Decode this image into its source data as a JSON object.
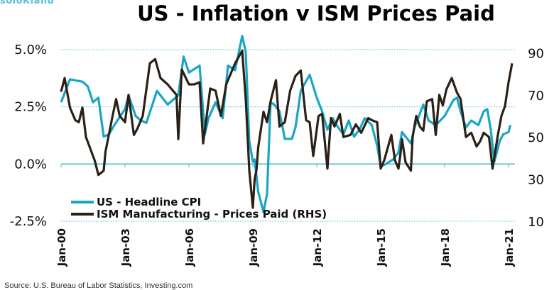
{
  "logo": "soloKland",
  "colors": {
    "cpi": "#1ba5c3",
    "ism": "#2a2016",
    "grid": "#4fb9d3"
  },
  "chart_data": {
    "type": "line",
    "title": "US - Inflation v ISM Prices Paid",
    "source": "Source: U.S. Bureau of Labor Statistics, Investing.com",
    "grid": true,
    "legend_placement": "bottom-left",
    "left_axis": {
      "ylim": [
        -2.5,
        5.0
      ],
      "ticks": [
        "-2.5%",
        "0.0%",
        "2.5%",
        "5.0%"
      ],
      "tick_values": [
        -2.5,
        0,
        2.5,
        5.0
      ]
    },
    "right_axis": {
      "ylim": [
        10,
        91.5
      ],
      "ticks": [
        "10",
        "30",
        "50",
        "70",
        "90"
      ],
      "tick_values": [
        10,
        30,
        50,
        70,
        90
      ]
    },
    "x_ticks": [
      "Jan-00",
      "Jan-03",
      "Jan-06",
      "Jan-09",
      "Jan-12",
      "Jan-15",
      "Jan-18",
      "Jan-21"
    ],
    "x_tick_values": [
      "2000-01",
      "2003-01",
      "2006-01",
      "2009-01",
      "2012-01",
      "2015-01",
      "2018-01",
      "2021-01"
    ],
    "series": [
      {
        "name": "US - Headline CPI",
        "axis": "left",
        "points": [
          [
            "2000-01",
            2.7
          ],
          [
            "2000-06",
            3.7
          ],
          [
            "2001-01",
            3.6
          ],
          [
            "2001-04",
            3.4
          ],
          [
            "2001-07",
            2.7
          ],
          [
            "2001-10",
            2.9
          ],
          [
            "2002-01",
            1.2
          ],
          [
            "2002-04",
            1.3
          ],
          [
            "2002-07",
            1.7
          ],
          [
            "2003-01",
            2.4
          ],
          [
            "2003-03",
            3.0
          ],
          [
            "2003-07",
            2.1
          ],
          [
            "2003-10",
            1.9
          ],
          [
            "2004-01",
            1.8
          ],
          [
            "2004-07",
            3.2
          ],
          [
            "2005-01",
            2.6
          ],
          [
            "2005-07",
            3.0
          ],
          [
            "2005-10",
            4.7
          ],
          [
            "2006-01",
            4.0
          ],
          [
            "2006-07",
            4.3
          ],
          [
            "2006-10",
            1.3
          ],
          [
            "2006-12",
            2.0
          ],
          [
            "2007-04",
            2.7
          ],
          [
            "2007-08",
            2.0
          ],
          [
            "2007-11",
            4.3
          ],
          [
            "2008-03",
            4.1
          ],
          [
            "2008-07",
            5.6
          ],
          [
            "2008-09",
            4.9
          ],
          [
            "2008-11",
            1.0
          ],
          [
            "2009-01",
            0.1
          ],
          [
            "2009-02",
            0.2
          ],
          [
            "2009-04",
            -1.2
          ],
          [
            "2009-07",
            -2.1
          ],
          [
            "2009-09",
            -1.3
          ],
          [
            "2009-11",
            2.7
          ],
          [
            "2010-01",
            2.6
          ],
          [
            "2010-04",
            2.3
          ],
          [
            "2010-07",
            1.1
          ],
          [
            "2010-11",
            1.1
          ],
          [
            "2011-01",
            1.6
          ],
          [
            "2011-04",
            3.2
          ],
          [
            "2011-09",
            3.9
          ],
          [
            "2012-01",
            2.9
          ],
          [
            "2012-04",
            2.3
          ],
          [
            "2012-07",
            1.5
          ],
          [
            "2012-10",
            2.0
          ],
          [
            "2013-01",
            1.6
          ],
          [
            "2013-04",
            1.3
          ],
          [
            "2013-07",
            1.9
          ],
          [
            "2013-10",
            1.2
          ],
          [
            "2014-01",
            1.5
          ],
          [
            "2014-04",
            2.0
          ],
          [
            "2014-08",
            1.7
          ],
          [
            "2014-11",
            0.8
          ],
          [
            "2015-01",
            -0.1
          ],
          [
            "2015-04",
            0.0
          ],
          [
            "2015-08",
            0.2
          ],
          [
            "2015-11",
            0.5
          ],
          [
            "2016-01",
            1.4
          ],
          [
            "2016-04",
            1.1
          ],
          [
            "2016-06",
            0.9
          ],
          [
            "2016-08",
            1.6
          ],
          [
            "2017-01",
            2.6
          ],
          [
            "2017-04",
            1.9
          ],
          [
            "2017-08",
            1.7
          ],
          [
            "2018-01",
            2.1
          ],
          [
            "2018-06",
            2.8
          ],
          [
            "2018-08",
            2.9
          ],
          [
            "2018-10",
            2.3
          ],
          [
            "2019-01",
            1.6
          ],
          [
            "2019-04",
            1.9
          ],
          [
            "2019-08",
            1.7
          ],
          [
            "2019-11",
            2.3
          ],
          [
            "2020-01",
            2.4
          ],
          [
            "2020-03",
            1.5
          ],
          [
            "2020-05",
            0.1
          ],
          [
            "2020-08",
            1.0
          ],
          [
            "2020-10",
            1.3
          ],
          [
            "2021-01",
            1.4
          ],
          [
            "2021-02",
            1.7
          ]
        ]
      },
      {
        "name": "ISM Manufacturing - Prices Paid (RHS)",
        "axis": "right",
        "points": [
          [
            "2000-01",
            71.5
          ],
          [
            "2000-03",
            78
          ],
          [
            "2000-06",
            64
          ],
          [
            "2000-09",
            58
          ],
          [
            "2000-11",
            57
          ],
          [
            "2001-01",
            64
          ],
          [
            "2001-03",
            50
          ],
          [
            "2001-08",
            38.7
          ],
          [
            "2001-10",
            32
          ],
          [
            "2002-01",
            34
          ],
          [
            "2002-02",
            43
          ],
          [
            "2002-06",
            60
          ],
          [
            "2002-08",
            68
          ],
          [
            "2002-10",
            60
          ],
          [
            "2003-01",
            57
          ],
          [
            "2003-03",
            70
          ],
          [
            "2003-06",
            51
          ],
          [
            "2003-08",
            54
          ],
          [
            "2003-11",
            60
          ],
          [
            "2004-03",
            85
          ],
          [
            "2004-06",
            87
          ],
          [
            "2004-09",
            78
          ],
          [
            "2005-01",
            75
          ],
          [
            "2005-06",
            70
          ],
          [
            "2005-07",
            49
          ],
          [
            "2005-09",
            82
          ],
          [
            "2006-01",
            75
          ],
          [
            "2006-04",
            75
          ],
          [
            "2006-07",
            76
          ],
          [
            "2006-09",
            47
          ],
          [
            "2007-01",
            73
          ],
          [
            "2007-04",
            72
          ],
          [
            "2007-07",
            60
          ],
          [
            "2007-10",
            75
          ],
          [
            "2008-03",
            85
          ],
          [
            "2008-07",
            91
          ],
          [
            "2008-09",
            68
          ],
          [
            "2008-11",
            34
          ],
          [
            "2009-01",
            16.4
          ],
          [
            "2009-02",
            30
          ],
          [
            "2009-03",
            34
          ],
          [
            "2009-04",
            45
          ],
          [
            "2009-07",
            62
          ],
          [
            "2009-09",
            57
          ],
          [
            "2009-11",
            67
          ],
          [
            "2010-02",
            77
          ],
          [
            "2010-04",
            55
          ],
          [
            "2010-07",
            57
          ],
          [
            "2010-10",
            72
          ],
          [
            "2011-01",
            79
          ],
          [
            "2011-04",
            81.6
          ],
          [
            "2011-07",
            58
          ],
          [
            "2011-09",
            57
          ],
          [
            "2011-11",
            41
          ],
          [
            "2012-02",
            60
          ],
          [
            "2012-04",
            61
          ],
          [
            "2012-07",
            35
          ],
          [
            "2012-09",
            59
          ],
          [
            "2012-11",
            55
          ],
          [
            "2013-02",
            61
          ],
          [
            "2013-04",
            50
          ],
          [
            "2013-08",
            51
          ],
          [
            "2013-11",
            56
          ],
          [
            "2014-02",
            52
          ],
          [
            "2014-06",
            59
          ],
          [
            "2014-08",
            58
          ],
          [
            "2014-11",
            57
          ],
          [
            "2015-01",
            35
          ],
          [
            "2015-03",
            39
          ],
          [
            "2015-07",
            51
          ],
          [
            "2015-09",
            39
          ],
          [
            "2015-11",
            35
          ],
          [
            "2015-12",
            41
          ],
          [
            "2016-01",
            49
          ],
          [
            "2016-03",
            38
          ],
          [
            "2016-06",
            34
          ],
          [
            "2016-07",
            50
          ],
          [
            "2016-09",
            60
          ],
          [
            "2016-11",
            55
          ],
          [
            "2017-01",
            53
          ],
          [
            "2017-03",
            67
          ],
          [
            "2017-06",
            68
          ],
          [
            "2017-08",
            51
          ],
          [
            "2017-10",
            70
          ],
          [
            "2017-12",
            65
          ],
          [
            "2018-02",
            72.6
          ],
          [
            "2018-05",
            78
          ],
          [
            "2018-08",
            71
          ],
          [
            "2018-10",
            68
          ],
          [
            "2019-01",
            50
          ],
          [
            "2019-04",
            52
          ],
          [
            "2019-07",
            45.5
          ],
          [
            "2019-09",
            48
          ],
          [
            "2019-11",
            52
          ],
          [
            "2020-02",
            50
          ],
          [
            "2020-04",
            35
          ],
          [
            "2020-07",
            51
          ],
          [
            "2020-09",
            60
          ],
          [
            "2020-11",
            64.7
          ],
          [
            "2021-01",
            76
          ],
          [
            "2021-03",
            85
          ]
        ]
      }
    ]
  }
}
